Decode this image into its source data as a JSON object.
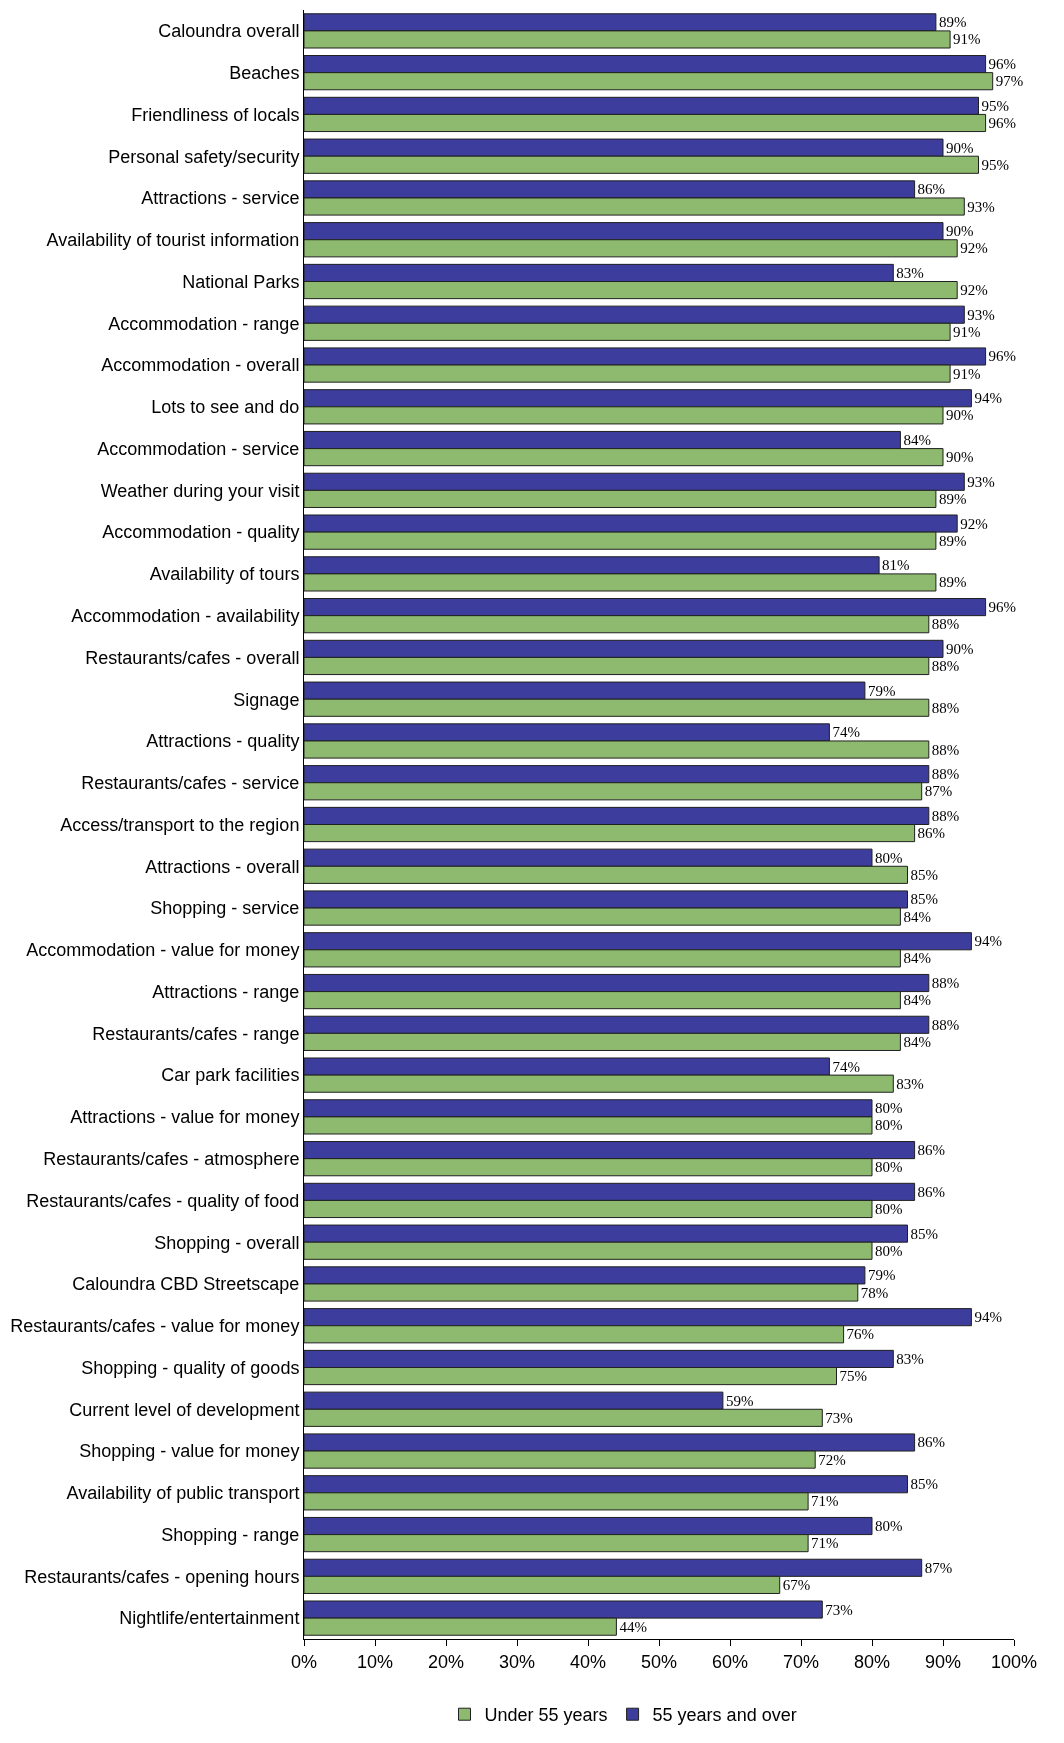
{
  "chart_data": {
    "type": "bar",
    "orientation": "horizontal",
    "legend": "bottom",
    "categories": [
      "Caloundra overall",
      "Beaches",
      "Friendliness of locals",
      "Personal safety/security",
      "Attractions - service",
      "Availability of tourist information",
      "National Parks",
      "Accommodation - range",
      "Accommodation - overall",
      "Lots to see and do",
      "Accommodation - service",
      "Weather during your visit",
      "Accommodation - quality",
      "Availability of tours",
      "Accommodation - availability",
      "Restaurants/cafes - overall",
      "Signage",
      "Attractions - quality",
      "Restaurants/cafes - service",
      "Access/transport to the region",
      "Attractions - overall",
      "Shopping - service",
      "Accommodation - value for money",
      "Attractions - range",
      "Restaurants/cafes - range",
      "Car park facilities",
      "Attractions - value for money",
      "Restaurants/cafes - atmosphere",
      "Restaurants/cafes - quality of food",
      "Shopping - overall",
      "Caloundra CBD Streetscape",
      "Restaurants/cafes - value for money",
      "Shopping - quality of goods",
      "Current level of development",
      "Shopping - value for money",
      "Availability of public transport",
      "Shopping - range",
      "Restaurants/cafes - opening hours",
      "Nightlife/entertainment"
    ],
    "series": [
      {
        "name": "55 years and over",
        "color": "#3d3d9e",
        "values": [
          89,
          96,
          95,
          90,
          86,
          90,
          83,
          93,
          96,
          94,
          84,
          93,
          92,
          81,
          96,
          90,
          79,
          74,
          88,
          88,
          80,
          85,
          94,
          88,
          88,
          74,
          80,
          86,
          86,
          85,
          79,
          94,
          83,
          59,
          86,
          85,
          80,
          87,
          73
        ],
        "value_labels": [
          "89%",
          "96%",
          "95%",
          "90%",
          "86%",
          "90%",
          "83%",
          "93%",
          "96%",
          "94%",
          "84%",
          "93%",
          "92%",
          "81%",
          "96%",
          "90%",
          "79%",
          "74%",
          "88%",
          "88%",
          "80%",
          "85%",
          "94%",
          "88%",
          "88%",
          "74%",
          "80%",
          "86%",
          "86%",
          "85%",
          "79%",
          "94%",
          "83%",
          "59%",
          "86%",
          "85%",
          "80%",
          "87%",
          "73%"
        ]
      },
      {
        "name": "Under 55 years",
        "color": "#8dba6e",
        "values": [
          91,
          97,
          96,
          95,
          93,
          92,
          92,
          91,
          91,
          90,
          90,
          89,
          89,
          89,
          88,
          88,
          88,
          88,
          87,
          86,
          85,
          84,
          84,
          84,
          84,
          83,
          80,
          80,
          80,
          80,
          78,
          76,
          75,
          73,
          72,
          71,
          71,
          67,
          44
        ],
        "value_labels": [
          "91%",
          "97%",
          "96%",
          "95%",
          "93%",
          "92%",
          "92%",
          "91%",
          "91%",
          "90%",
          "90%",
          "89%",
          "89%",
          "89%",
          "88%",
          "88%",
          "88%",
          "88%",
          "87%",
          "86%",
          "85%",
          "84%",
          "84%",
          "84%",
          "84%",
          "83%",
          "80%",
          "80%",
          "80%",
          "80%",
          "78%",
          "76%",
          "75%",
          "73%",
          "72%",
          "71%",
          "71%",
          "67%",
          "44%"
        ]
      }
    ],
    "xlim": [
      0,
      100
    ],
    "xticks": [
      {
        "value": 0,
        "label": "0%"
      },
      {
        "value": 10,
        "label": "10%"
      },
      {
        "value": 20,
        "label": "20%"
      },
      {
        "value": 30,
        "label": "30%"
      },
      {
        "value": 40,
        "label": "40%"
      },
      {
        "value": 50,
        "label": "50%"
      },
      {
        "value": 60,
        "label": "60%"
      },
      {
        "value": 70,
        "label": "70%"
      },
      {
        "value": 80,
        "label": "80%"
      },
      {
        "value": 90,
        "label": "90%"
      },
      {
        "value": 100,
        "label": "100%"
      }
    ]
  }
}
